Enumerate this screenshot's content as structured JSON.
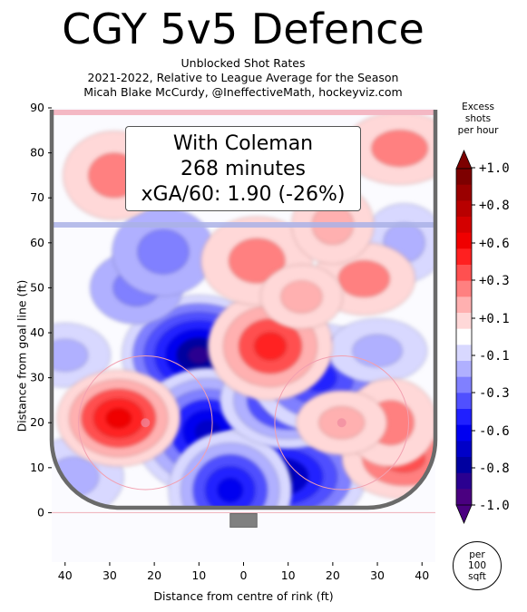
{
  "header": {
    "title": "CGY 5v5 Defence",
    "subtitle_1": "Unblocked Shot Rates",
    "subtitle_2": "2021-2022, Relative to League Average for the Season",
    "subtitle_3": "Micah Blake McCurdy, @IneffectiveMath, hockeyviz.com"
  },
  "info_box": {
    "line_1": "With Coleman",
    "line_2": "268 minutes",
    "line_3": "xGA/60: 1.90 (-26%)"
  },
  "colorbar": {
    "title_1": "Excess",
    "title_2": "shots",
    "title_3": "per hour",
    "ticks": [
      "+1.0",
      "+0.8",
      "+0.6",
      "+0.3",
      "+0.1",
      "-0.1",
      "-0.3",
      "-0.6",
      "-0.8",
      "-1.0"
    ],
    "colors": [
      "#7d0000",
      "#9a0000",
      "#b80000",
      "#d40000",
      "#f00000",
      "#ff2020",
      "#ff5050",
      "#ff8080",
      "#ffb0b0",
      "#ffd8d8",
      "#ffffff",
      "#d8d8ff",
      "#b0b0ff",
      "#8080ff",
      "#5050ff",
      "#2020ff",
      "#0000f0",
      "#0000c8",
      "#0000a0",
      "#2a0090",
      "#4a0080"
    ]
  },
  "unit_badge": {
    "line_1": "per",
    "line_2": "100",
    "line_3": "sqft"
  },
  "chart_data": {
    "type": "heatmap",
    "xlabel": "Distance from centre of rink (ft)",
    "ylabel": "Distance from goal line (ft)",
    "xlim": [
      -43,
      43
    ],
    "ylim": [
      -11,
      90
    ],
    "x_ticks": [
      "40",
      "30",
      "20",
      "10",
      "0",
      "10",
      "20",
      "30",
      "40"
    ],
    "x_tick_values": [
      -40,
      -30,
      -20,
      -10,
      0,
      10,
      20,
      30,
      40
    ],
    "y_ticks": [
      "0",
      "10",
      "20",
      "30",
      "40",
      "50",
      "60",
      "70",
      "80",
      "90"
    ],
    "y_tick_values": [
      0,
      10,
      20,
      30,
      40,
      50,
      60,
      70,
      80,
      90
    ],
    "blue_line_y": 64,
    "red_line_y": 89,
    "grid": false,
    "blobs": [
      {
        "x": -10,
        "y": 35,
        "level": -0.9
      },
      {
        "x": -8,
        "y": 18,
        "level": -0.7
      },
      {
        "x": 8,
        "y": 8,
        "level": -0.8
      },
      {
        "x": -3,
        "y": 5,
        "level": -0.6
      },
      {
        "x": 10,
        "y": 25,
        "level": -0.6
      },
      {
        "x": 17,
        "y": 30,
        "level": -0.5
      },
      {
        "x": -24,
        "y": 50,
        "level": -0.3
      },
      {
        "x": -18,
        "y": 58,
        "level": -0.3
      },
      {
        "x": 30,
        "y": 36,
        "level": -0.2
      },
      {
        "x": 36,
        "y": 60,
        "level": -0.2
      },
      {
        "x": -40,
        "y": 35,
        "level": -0.2
      },
      {
        "x": -38,
        "y": 8,
        "level": -0.2
      },
      {
        "x": -28,
        "y": 21,
        "level": 0.6
      },
      {
        "x": 6,
        "y": 37,
        "level": 0.5
      },
      {
        "x": 36,
        "y": 12,
        "level": 0.4
      },
      {
        "x": 33,
        "y": 20,
        "level": 0.3
      },
      {
        "x": 27,
        "y": 52,
        "level": 0.3
      },
      {
        "x": 3,
        "y": 56,
        "level": 0.3
      },
      {
        "x": 13,
        "y": 48,
        "level": 0.2
      },
      {
        "x": -29,
        "y": 75,
        "level": 0.3
      },
      {
        "x": 35,
        "y": 81,
        "level": 0.3
      },
      {
        "x": 20,
        "y": 64,
        "level": 0.2
      },
      {
        "x": 22,
        "y": 20,
        "level": 0.2
      }
    ]
  }
}
